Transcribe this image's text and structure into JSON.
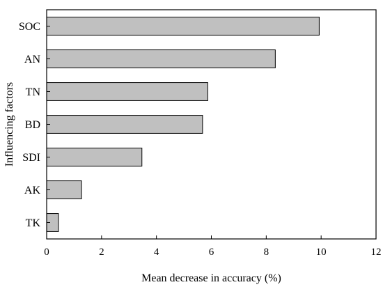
{
  "chart_data": {
    "type": "bar",
    "orientation": "horizontal",
    "categories": [
      "SOC",
      "AN",
      "TN",
      "BD",
      "SDI",
      "AK",
      "TK"
    ],
    "values": [
      9.93,
      8.33,
      5.87,
      5.68,
      3.47,
      1.27,
      0.43
    ],
    "xlabel": "Mean decrease in accuracy (%)",
    "ylabel": "Influencing factors",
    "xlim": [
      0,
      12
    ],
    "xticks": [
      "0",
      "2",
      "4",
      "6",
      "8",
      "10",
      "12"
    ],
    "grid": false,
    "legend": "none",
    "bar_color": "#c0c0c0",
    "bar_edge_color": "#000000"
  }
}
